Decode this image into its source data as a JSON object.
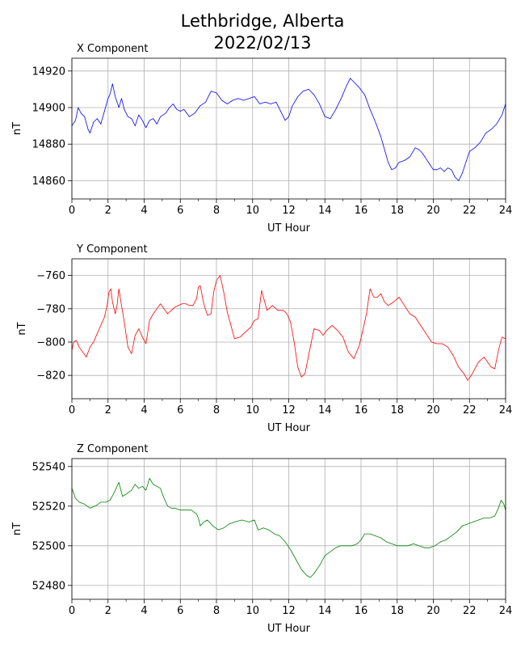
{
  "figure": {
    "title_line1": "Lethbridge, Alberta",
    "title_line2": "2022/02/13"
  },
  "chart_data": [
    {
      "type": "line",
      "title": "X Component",
      "xlabel": "UT Hour",
      "ylabel": "nT",
      "color": "#0000ff",
      "xlim": [
        0,
        24
      ],
      "ylim": [
        14850,
        14927
      ],
      "xticks": [
        0,
        2,
        4,
        6,
        8,
        10,
        12,
        14,
        16,
        18,
        20,
        22,
        24
      ],
      "yticks": [
        14860,
        14880,
        14900,
        14920
      ],
      "grid": true,
      "x": [
        0,
        0.2,
        0.35,
        0.5,
        0.7,
        0.9,
        1.0,
        1.2,
        1.4,
        1.6,
        1.8,
        2.0,
        2.1,
        2.25,
        2.4,
        2.6,
        2.75,
        2.9,
        3.1,
        3.3,
        3.5,
        3.7,
        3.9,
        4.1,
        4.3,
        4.5,
        4.7,
        4.9,
        5.2,
        5.4,
        5.6,
        5.8,
        6.0,
        6.2,
        6.5,
        6.8,
        7.1,
        7.4,
        7.7,
        8.0,
        8.3,
        8.6,
        8.9,
        9.2,
        9.5,
        9.8,
        10.1,
        10.4,
        10.7,
        11.0,
        11.3,
        11.6,
        11.8,
        12.0,
        12.2,
        12.5,
        12.8,
        13.1,
        13.4,
        13.7,
        14.0,
        14.3,
        14.6,
        14.9,
        15.2,
        15.4,
        15.6,
        15.9,
        16.2,
        16.5,
        16.8,
        17.1,
        17.3,
        17.5,
        17.7,
        17.9,
        18.1,
        18.4,
        18.7,
        19.0,
        19.2,
        19.4,
        19.6,
        19.8,
        20.0,
        20.2,
        20.4,
        20.6,
        20.8,
        21.0,
        21.2,
        21.4,
        21.6,
        21.8,
        22.0,
        22.3,
        22.6,
        22.9,
        23.2,
        23.5,
        23.8,
        24.0
      ],
      "y": [
        14890,
        14893,
        14900,
        14897,
        14895,
        14888,
        14886,
        14892,
        14894,
        14891,
        14898,
        14905,
        14907,
        14913,
        14906,
        14900,
        14905,
        14899,
        14895,
        14894,
        14890,
        14896,
        14893,
        14889,
        14893,
        14894,
        14891,
        14895,
        14897,
        14900,
        14902,
        14899,
        14898,
        14899,
        14895,
        14897,
        14901,
        14903,
        14909,
        14908,
        14904,
        14902,
        14904,
        14905,
        14904,
        14905,
        14906,
        14902,
        14903,
        14902,
        14903,
        14897,
        14893,
        14895,
        14901,
        14906,
        14909,
        14910,
        14907,
        14902,
        14895,
        14894,
        14899,
        14905,
        14912,
        14916,
        14914,
        14911,
        14907,
        14899,
        14892,
        14884,
        14877,
        14870,
        14866,
        14867,
        14870,
        14871,
        14873,
        14878,
        14877,
        14875,
        14872,
        14869,
        14866,
        14866,
        14867,
        14865,
        14867,
        14866,
        14862,
        14860,
        14864,
        14870,
        14876,
        14878,
        14881,
        14886,
        14888,
        14891,
        14896,
        14902
      ]
    },
    {
      "type": "line",
      "title": "Y Component",
      "xlabel": "UT Hour",
      "ylabel": "nT",
      "color": "#ff0000",
      "xlim": [
        0,
        24
      ],
      "ylim": [
        -834,
        -750
      ],
      "xticks": [
        0,
        2,
        4,
        6,
        8,
        10,
        12,
        14,
        16,
        18,
        20,
        22,
        24
      ],
      "yticks": [
        -760,
        -780,
        -800,
        -820
      ],
      "grid": true,
      "x": [
        0,
        0.1,
        0.25,
        0.4,
        0.6,
        0.8,
        1.0,
        1.2,
        1.4,
        1.6,
        1.8,
        1.95,
        2.05,
        2.15,
        2.25,
        2.4,
        2.5,
        2.6,
        2.7,
        2.9,
        3.1,
        3.3,
        3.5,
        3.7,
        3.9,
        4.1,
        4.3,
        4.5,
        4.7,
        4.9,
        5.1,
        5.3,
        5.5,
        5.7,
        5.9,
        6.1,
        6.3,
        6.5,
        6.7,
        6.9,
        7.0,
        7.1,
        7.3,
        7.5,
        7.7,
        7.85,
        8.0,
        8.2,
        8.4,
        8.6,
        8.8,
        9.0,
        9.3,
        9.6,
        9.9,
        10.1,
        10.3,
        10.5,
        10.8,
        11.1,
        11.4,
        11.7,
        11.9,
        12.1,
        12.3,
        12.5,
        12.7,
        12.9,
        13.1,
        13.4,
        13.7,
        13.9,
        14.1,
        14.4,
        14.7,
        15.0,
        15.3,
        15.6,
        15.9,
        16.1,
        16.3,
        16.5,
        16.7,
        16.9,
        17.1,
        17.3,
        17.5,
        17.8,
        18.1,
        18.4,
        18.7,
        19.0,
        19.3,
        19.6,
        19.9,
        20.2,
        20.5,
        20.8,
        21.1,
        21.4,
        21.7,
        21.9,
        22.1,
        22.3,
        22.5,
        22.8,
        23.0,
        23.2,
        23.4,
        23.6,
        23.8,
        24.0
      ],
      "y": [
        -805,
        -800,
        -799,
        -803,
        -806,
        -809,
        -803,
        -800,
        -795,
        -790,
        -785,
        -778,
        -770,
        -768,
        -776,
        -783,
        -778,
        -768,
        -775,
        -788,
        -803,
        -807,
        -796,
        -792,
        -797,
        -801,
        -787,
        -783,
        -780,
        -777,
        -780,
        -783,
        -781,
        -779,
        -778,
        -777,
        -777,
        -778,
        -778,
        -774,
        -767,
        -766,
        -777,
        -784,
        -783,
        -770,
        -763,
        -760,
        -770,
        -782,
        -790,
        -798,
        -797,
        -794,
        -791,
        -787,
        -786,
        -769,
        -781,
        -778,
        -781,
        -781,
        -783,
        -788,
        -800,
        -815,
        -821,
        -819,
        -808,
        -792,
        -793,
        -796,
        -793,
        -790,
        -793,
        -797,
        -806,
        -810,
        -802,
        -793,
        -783,
        -768,
        -773,
        -773,
        -771,
        -776,
        -778,
        -776,
        -773,
        -778,
        -783,
        -785,
        -790,
        -795,
        -800,
        -801,
        -801,
        -803,
        -808,
        -815,
        -819,
        -823,
        -820,
        -816,
        -812,
        -809,
        -812,
        -815,
        -816,
        -805,
        -797,
        -798
      ]
    },
    {
      "type": "line",
      "title": "Z Component",
      "xlabel": "UT Hour",
      "ylabel": "nT",
      "color": "#008000",
      "xlim": [
        0,
        24
      ],
      "ylim": [
        52473,
        52544
      ],
      "xticks": [
        0,
        2,
        4,
        6,
        8,
        10,
        12,
        14,
        16,
        18,
        20,
        22,
        24
      ],
      "yticks": [
        52480,
        52500,
        52520,
        52540
      ],
      "grid": true,
      "x": [
        0,
        0.2,
        0.4,
        0.7,
        1.0,
        1.3,
        1.6,
        1.9,
        2.1,
        2.3,
        2.5,
        2.6,
        2.8,
        3.0,
        3.3,
        3.5,
        3.7,
        3.9,
        4.1,
        4.3,
        4.5,
        4.7,
        4.9,
        5.1,
        5.3,
        5.5,
        5.7,
        6.0,
        6.3,
        6.6,
        6.9,
        7.0,
        7.1,
        7.3,
        7.5,
        7.8,
        8.1,
        8.4,
        8.7,
        9.0,
        9.4,
        9.8,
        10.1,
        10.3,
        10.6,
        10.9,
        11.2,
        11.5,
        11.8,
        12.1,
        12.4,
        12.7,
        13.0,
        13.2,
        13.4,
        13.7,
        14.0,
        14.3,
        14.6,
        14.9,
        15.2,
        15.5,
        15.8,
        16.0,
        16.2,
        16.5,
        16.8,
        17.1,
        17.4,
        17.7,
        18.0,
        18.3,
        18.6,
        18.9,
        19.2,
        19.5,
        19.8,
        20.1,
        20.4,
        20.7,
        21.0,
        21.3,
        21.6,
        21.9,
        22.2,
        22.5,
        22.8,
        23.1,
        23.4,
        23.6,
        23.75,
        23.9,
        24.0
      ],
      "y": [
        52529,
        52524,
        52522,
        52521,
        52519,
        52520,
        52522,
        52522,
        52523,
        52526,
        52530,
        52532,
        52525,
        52526,
        52528,
        52531,
        52529,
        52530,
        52528,
        52534,
        52531,
        52530,
        52529,
        52524,
        52520,
        52519,
        52519,
        52518,
        52518,
        52518,
        52516,
        52514,
        52510,
        52512,
        52513,
        52510,
        52508,
        52509,
        52511,
        52512,
        52513,
        52512,
        52513,
        52508,
        52509,
        52508,
        52506,
        52505,
        52502,
        52498,
        52493,
        52488,
        52485,
        52484,
        52486,
        52490,
        52495,
        52497,
        52499,
        52500,
        52500,
        52500,
        52501,
        52503,
        52506,
        52506,
        52505,
        52504,
        52502,
        52501,
        52500,
        52500,
        52500,
        52501,
        52500,
        52499,
        52499,
        52500,
        52502,
        52503,
        52505,
        52507,
        52510,
        52511,
        52512,
        52513,
        52514,
        52514,
        52515,
        52519,
        52523,
        52521,
        52518
      ]
    }
  ]
}
